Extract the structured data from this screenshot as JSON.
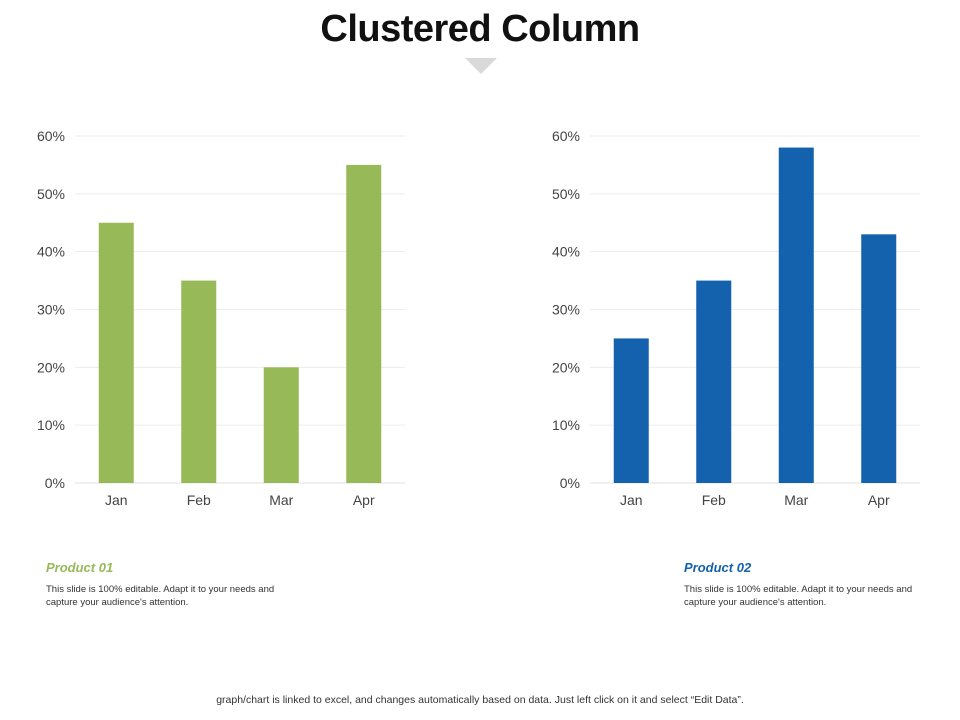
{
  "title": "Clustered Column",
  "colors": {
    "product_01": "#97b957",
    "product_02": "#1461ad",
    "pointer": "#d9d9d9"
  },
  "chart_data": [
    {
      "type": "bar",
      "categories": [
        "Jan",
        "Feb",
        "Mar",
        "Apr"
      ],
      "series": [
        {
          "values": [
            45,
            35,
            20,
            55
          ]
        }
      ],
      "ylim": [
        0,
        60
      ],
      "yticks": [
        "0%",
        "10%",
        "20%",
        "30%",
        "40%",
        "50%",
        "60%"
      ],
      "grid": true,
      "color": "#97b957"
    },
    {
      "type": "bar",
      "categories": [
        "Jan",
        "Feb",
        "Mar",
        "Apr"
      ],
      "series": [
        {
          "values": [
            25,
            35,
            58,
            43
          ]
        }
      ],
      "ylim": [
        0,
        60
      ],
      "yticks": [
        "0%",
        "10%",
        "20%",
        "30%",
        "40%",
        "50%",
        "60%"
      ],
      "grid": true,
      "color": "#1461ad"
    }
  ],
  "products": [
    {
      "name": "Product 01",
      "description": "This slide is 100% editable.  Adapt it to your needs and capture your audience's attention."
    },
    {
      "name": "Product 02",
      "description": "This slide is 100% editable.  Adapt it to your needs and capture your audience's attention."
    }
  ],
  "footer": "graph/chart is linked to excel,  and changes automatically based on data. Just left click on it and select “Edit Data”."
}
